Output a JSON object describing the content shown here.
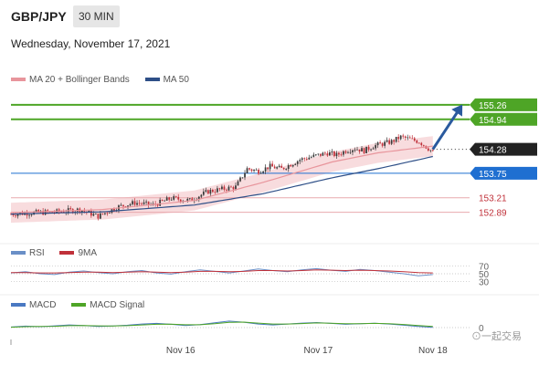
{
  "header": {
    "pair": "GBP/JPY",
    "timeframe": "30 MIN"
  },
  "date": "Wednesday, November 17, 2021",
  "watermark": "⊙一起交易",
  "colors": {
    "ma20": "#e8959c",
    "ma50": "#2e4f87",
    "green": "#4ea526",
    "blue": "#1f6fd1",
    "resistance": "#c0313a",
    "rsi": "#6a8fc7",
    "rsi9ma": "#c0313a",
    "macd": "#4a79c2",
    "signal": "#4ea526",
    "up": "#3a3a3a",
    "down": "#c0313a"
  },
  "chart_data": [
    {
      "type": "candlestick",
      "legend": [
        "MA 20 + Bollinger Bands",
        "MA 50"
      ],
      "ylim": [
        152.5,
        155.6
      ],
      "levels": [
        {
          "value": 155.26,
          "label": "155.26",
          "style": "target"
        },
        {
          "value": 154.94,
          "label": "154.94",
          "style": "target"
        },
        {
          "value": 154.28,
          "label": "154.28",
          "style": "current"
        },
        {
          "value": 153.75,
          "label": "153.75",
          "style": "support"
        },
        {
          "value": 153.21,
          "label": "153.21",
          "style": "resistance"
        },
        {
          "value": 152.89,
          "label": "152.89",
          "style": "resistance"
        }
      ],
      "price_path": [
        [
          0,
          152.85
        ],
        [
          10,
          152.88
        ],
        [
          20,
          152.9
        ],
        [
          30,
          152.95
        ],
        [
          38,
          152.8
        ],
        [
          46,
          153.0
        ],
        [
          54,
          153.1
        ],
        [
          62,
          153.05
        ],
        [
          70,
          153.2
        ],
        [
          78,
          153.15
        ],
        [
          86,
          153.35
        ],
        [
          92,
          153.4
        ],
        [
          98,
          153.45
        ],
        [
          103,
          153.85
        ],
        [
          108,
          153.8
        ],
        [
          113,
          153.9
        ],
        [
          118,
          153.85
        ],
        [
          122,
          153.95
        ],
        [
          126,
          154.05
        ],
        [
          130,
          154.1
        ],
        [
          134,
          154.15
        ],
        [
          138,
          154.2
        ],
        [
          142,
          154.15
        ],
        [
          146,
          154.25
        ],
        [
          150,
          154.3
        ],
        [
          154,
          154.25
        ],
        [
          158,
          154.35
        ],
        [
          162,
          154.4
        ],
        [
          166,
          154.45
        ],
        [
          170,
          154.55
        ],
        [
          174,
          154.5
        ],
        [
          178,
          154.45
        ],
        [
          182,
          154.3
        ],
        [
          184,
          154.22
        ]
      ],
      "ma50_path": [
        [
          0,
          152.85
        ],
        [
          40,
          152.9
        ],
        [
          80,
          153.05
        ],
        [
          110,
          153.3
        ],
        [
          140,
          153.65
        ],
        [
          160,
          153.85
        ],
        [
          184,
          154.12
        ]
      ],
      "ma20_path": [
        [
          0,
          152.88
        ],
        [
          40,
          152.95
        ],
        [
          80,
          153.15
        ],
        [
          110,
          153.55
        ],
        [
          140,
          154.0
        ],
        [
          160,
          154.2
        ],
        [
          184,
          154.35
        ]
      ],
      "bollinger_width": 0.22,
      "target_arrow": {
        "from": [
          184,
          154.28
        ],
        "to": [
          196,
          155.2
        ]
      }
    },
    {
      "type": "line",
      "legend": [
        "RSI",
        "9MA"
      ],
      "ylim": [
        20,
        80
      ],
      "ticks": [
        70,
        50,
        30
      ],
      "series": [
        {
          "name": "RSI",
          "values": [
            52,
            55,
            50,
            48,
            54,
            57,
            53,
            50,
            55,
            58,
            52,
            49,
            55,
            60,
            56,
            52,
            57,
            62,
            58,
            55,
            60,
            63,
            59,
            56,
            61,
            58,
            54,
            50,
            45,
            48
          ]
        },
        {
          "name": "9MA",
          "values": [
            53,
            53,
            52,
            52,
            53,
            54,
            54,
            53,
            54,
            55,
            54,
            53,
            54,
            56,
            56,
            55,
            56,
            58,
            58,
            57,
            58,
            60,
            59,
            58,
            59,
            58,
            57,
            55,
            53,
            52
          ]
        }
      ]
    },
    {
      "type": "line",
      "legend": [
        "MACD",
        "MACD Signal"
      ],
      "ylim": [
        -1,
        1
      ],
      "ticks": [
        0
      ],
      "series": [
        {
          "name": "MACD",
          "values": [
            0.05,
            0.12,
            0.08,
            0.15,
            0.22,
            0.18,
            0.1,
            0.14,
            0.2,
            0.3,
            0.35,
            0.28,
            0.18,
            0.25,
            0.4,
            0.55,
            0.45,
            0.3,
            0.22,
            0.3,
            0.38,
            0.42,
            0.35,
            0.28,
            0.32,
            0.36,
            0.3,
            0.2,
            0.1,
            0.02
          ]
        },
        {
          "name": "MACD Signal",
          "values": [
            0.03,
            0.08,
            0.09,
            0.11,
            0.16,
            0.18,
            0.15,
            0.14,
            0.16,
            0.22,
            0.28,
            0.29,
            0.24,
            0.24,
            0.32,
            0.44,
            0.46,
            0.38,
            0.3,
            0.3,
            0.34,
            0.39,
            0.37,
            0.33,
            0.33,
            0.35,
            0.33,
            0.26,
            0.18,
            0.1
          ]
        }
      ]
    }
  ],
  "x_axis": {
    "labels": [
      {
        "text": "Nov 16",
        "at": 0.37
      },
      {
        "text": "Nov 17",
        "at": 0.67
      },
      {
        "text": "Nov 18",
        "at": 0.92
      }
    ]
  }
}
